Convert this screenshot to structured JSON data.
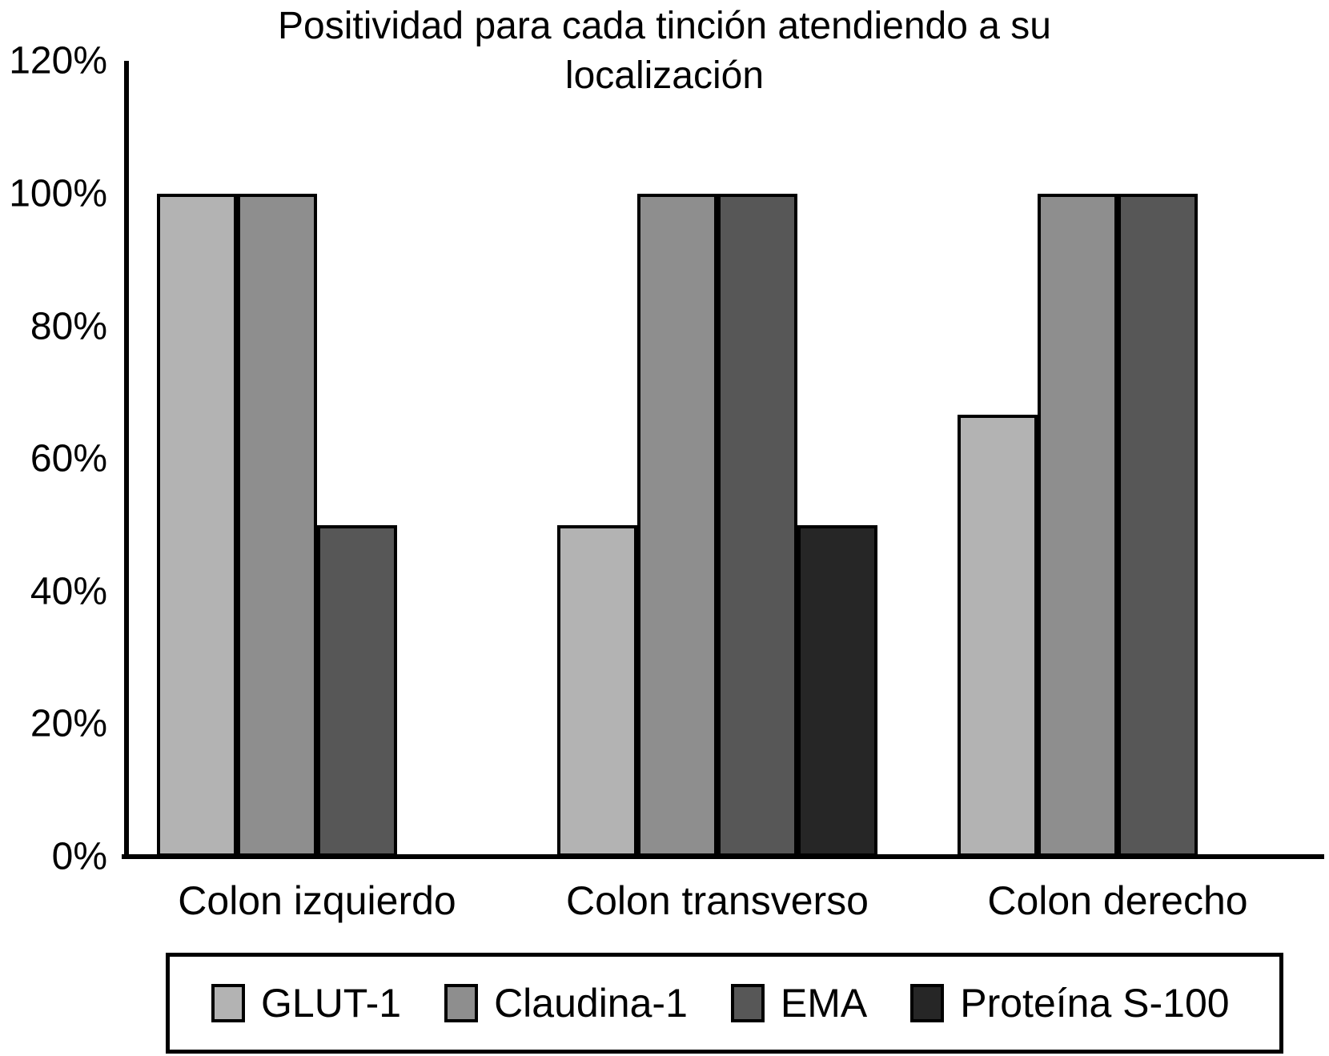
{
  "title": "Positividad para cada tinción atendiendo a su localización",
  "chart_data": {
    "type": "bar",
    "title": "Positividad para cada tinción atendiendo a su localización",
    "categories": [
      "Colon izquierdo",
      "Colon transverso",
      "Colon derecho"
    ],
    "series": [
      {
        "name": "GLUT-1",
        "color": "#b3b3b3",
        "values": [
          100,
          50,
          66.7
        ]
      },
      {
        "name": "Claudina-1",
        "color": "#8e8e8e",
        "values": [
          100,
          100,
          100
        ]
      },
      {
        "name": "EMA",
        "color": "#575757",
        "values": [
          50,
          100,
          100
        ]
      },
      {
        "name": "Proteína S-100",
        "color": "#262626",
        "values": [
          0,
          50,
          0
        ]
      }
    ],
    "y_ticks": [
      {
        "label": "120%",
        "value": 120
      },
      {
        "label": "100%",
        "value": 100
      },
      {
        "label": "80%",
        "value": 80
      },
      {
        "label": "60%",
        "value": 60
      },
      {
        "label": "40%",
        "value": 40
      },
      {
        "label": "20%",
        "value": 20
      },
      {
        "label": "0%",
        "value": 0
      }
    ],
    "ylim": [
      0,
      120
    ],
    "xlabel": "",
    "ylabel": "",
    "grid": false,
    "legend_position": "bottom",
    "bar_border_color": "#000000",
    "axis_color": "#000000",
    "background": "#ffffff"
  }
}
